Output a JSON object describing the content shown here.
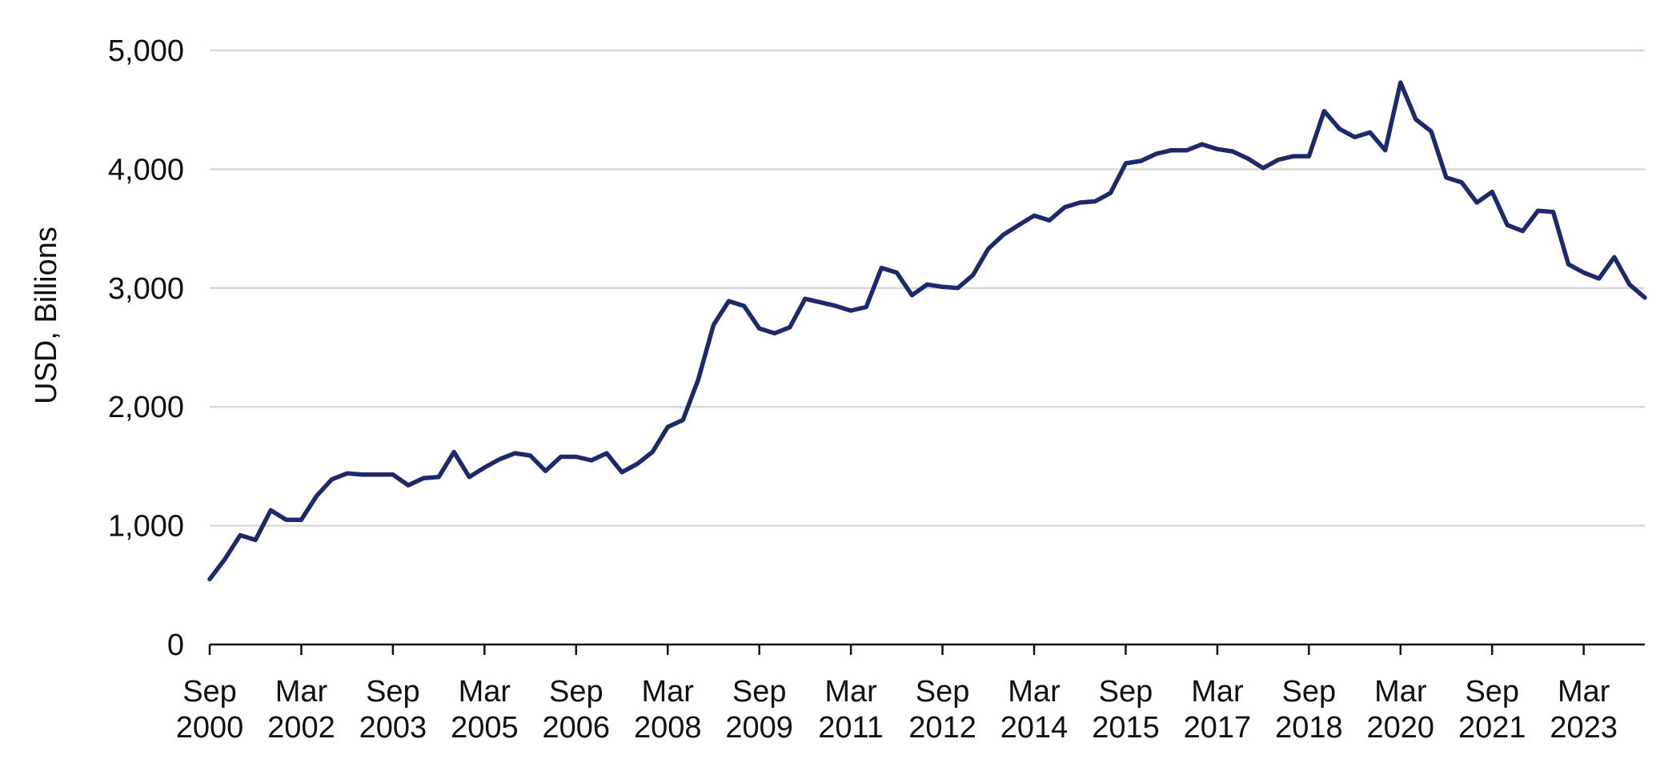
{
  "chart_data": {
    "type": "line",
    "title": "",
    "xlabel": "",
    "ylabel": "USD, Billions",
    "ylim": [
      0,
      5000
    ],
    "yticks": [
      0,
      1000,
      2000,
      3000,
      4000,
      5000
    ],
    "ytick_labels": [
      "0",
      "1,000",
      "2,000",
      "3,000",
      "4,000",
      "5,000"
    ],
    "xtick_labels": [
      [
        "Sep",
        "2000"
      ],
      [
        "Mar",
        "2002"
      ],
      [
        "Sep",
        "2003"
      ],
      [
        "Mar",
        "2005"
      ],
      [
        "Sep",
        "2006"
      ],
      [
        "Mar",
        "2008"
      ],
      [
        "Sep",
        "2009"
      ],
      [
        "Mar",
        "2011"
      ],
      [
        "Sep",
        "2012"
      ],
      [
        "Mar",
        "2014"
      ],
      [
        "Sep",
        "2015"
      ],
      [
        "Mar",
        "2017"
      ],
      [
        "Sep",
        "2018"
      ],
      [
        "Mar",
        "2020"
      ],
      [
        "Sep",
        "2021"
      ],
      [
        "Mar",
        "2023"
      ]
    ],
    "x_frequency": "quarterly",
    "x_start": "Sep 2000",
    "grid": true,
    "legend": "none",
    "series": [
      {
        "color": "#1c2a6b",
        "values": [
          550,
          720,
          920,
          880,
          1130,
          1050,
          1050,
          1250,
          1390,
          1440,
          1430,
          1430,
          1430,
          1340,
          1400,
          1410,
          1620,
          1410,
          1490,
          1560,
          1610,
          1590,
          1460,
          1580,
          1580,
          1550,
          1610,
          1450,
          1520,
          1620,
          1830,
          1890,
          2230,
          2690,
          2890,
          2850,
          2660,
          2620,
          2670,
          2910,
          2880,
          2850,
          2810,
          2840,
          3170,
          3130,
          2940,
          3030,
          3010,
          3000,
          3110,
          3330,
          3450,
          3530,
          3610,
          3570,
          3680,
          3720,
          3730,
          3800,
          4050,
          4070,
          4130,
          4160,
          4160,
          4210,
          4170,
          4150,
          4090,
          4010,
          4080,
          4110,
          4110,
          4490,
          4340,
          4270,
          4310,
          4160,
          4730,
          4420,
          4320,
          3930,
          3890,
          3720,
          3810,
          3530,
          3480,
          3650,
          3640,
          3200,
          3130,
          3080,
          3260,
          3030,
          2920
        ]
      }
    ]
  }
}
